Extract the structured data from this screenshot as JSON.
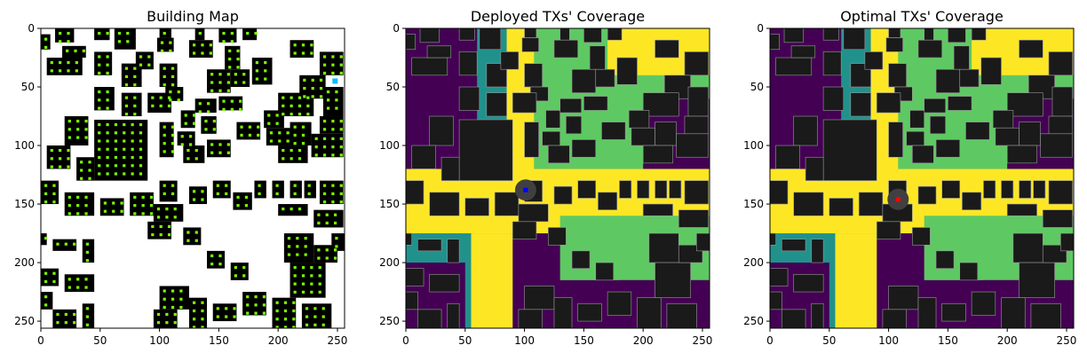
{
  "figure": {
    "colors": {
      "background": "#ffffff",
      "building_fill": "#000000",
      "candidate_marker": "#7cfc00",
      "deployed_tx_marker": "#00bfff",
      "coverage_none": "#440154",
      "coverage_low": "#21918c",
      "coverage_mid": "#5ec962",
      "coverage_high": "#fde725",
      "building_overlay": "#1a1a1a",
      "deployed_tx_point": "#0000ff",
      "optimal_tx_point": "#ff0000"
    }
  },
  "chart_data": [
    {
      "type": "heatmap",
      "title": "Building Map",
      "xlim": [
        0,
        256
      ],
      "ylim": [
        256,
        0
      ],
      "xticks": [
        "0",
        "50",
        "100",
        "150",
        "200",
        "250"
      ],
      "yticks": [
        "0",
        "50",
        "100",
        "150",
        "200",
        "250"
      ],
      "grid": false,
      "legend": "none",
      "layers": [
        "buildings",
        "candidate_tx_grid",
        "deployed_tx"
      ],
      "deployed_tx": [
        {
          "x": 248,
          "y": 45
        }
      ]
    },
    {
      "type": "heatmap",
      "title": "Deployed TXs' Coverage",
      "xlim": [
        0,
        256
      ],
      "ylim": [
        256,
        0
      ],
      "xticks": [
        "0",
        "50",
        "100",
        "150",
        "200",
        "250"
      ],
      "yticks": [
        "0",
        "50",
        "100",
        "150",
        "200",
        "250"
      ],
      "grid": false,
      "legend": "none",
      "layers": [
        "coverage",
        "buildings"
      ],
      "tx_points": [
        {
          "x": 101,
          "y": 138
        }
      ]
    },
    {
      "type": "heatmap",
      "title": "Optimal TXs' Coverage",
      "xlim": [
        0,
        256
      ],
      "ylim": [
        256,
        0
      ],
      "xticks": [
        "0",
        "50",
        "100",
        "150",
        "200",
        "250"
      ],
      "yticks": [
        "0",
        "50",
        "100",
        "150",
        "200",
        "250"
      ],
      "grid": false,
      "legend": "none",
      "layers": [
        "coverage",
        "buildings"
      ],
      "tx_points": [
        {
          "x": 108,
          "y": 146
        }
      ]
    }
  ]
}
